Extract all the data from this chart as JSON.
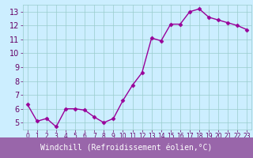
{
  "x": [
    0,
    1,
    2,
    3,
    4,
    5,
    6,
    7,
    8,
    9,
    10,
    11,
    12,
    13,
    14,
    15,
    16,
    17,
    18,
    19,
    20,
    21,
    22,
    23
  ],
  "y": [
    6.3,
    5.1,
    5.3,
    4.7,
    6.0,
    6.0,
    5.9,
    5.4,
    5.0,
    5.3,
    6.6,
    7.7,
    8.6,
    11.1,
    10.9,
    12.1,
    12.1,
    13.0,
    13.2,
    12.6,
    12.4,
    12.2,
    12.0,
    11.7
  ],
  "line_color": "#990099",
  "marker": "D",
  "marker_size": 2.5,
  "bg_color": "#cceeff",
  "grid_color": "#99cccc",
  "ylim": [
    4.5,
    13.5
  ],
  "yticks": [
    5,
    6,
    7,
    8,
    9,
    10,
    11,
    12,
    13
  ],
  "xlim": [
    -0.5,
    23.5
  ],
  "xticks": [
    0,
    1,
    2,
    3,
    4,
    5,
    6,
    7,
    8,
    9,
    10,
    11,
    12,
    13,
    14,
    15,
    16,
    17,
    18,
    19,
    20,
    21,
    22,
    23
  ],
  "label_color": "#660066",
  "xlabel": "Windchill (Refroidissement éolien,°C)",
  "xlabel_bg": "#9966aa",
  "xlabel_fg": "#ffffff",
  "xlabel_fontsize": 7.0,
  "ytick_fontsize": 7.0,
  "xtick_fontsize": 5.5,
  "linewidth": 1.0
}
